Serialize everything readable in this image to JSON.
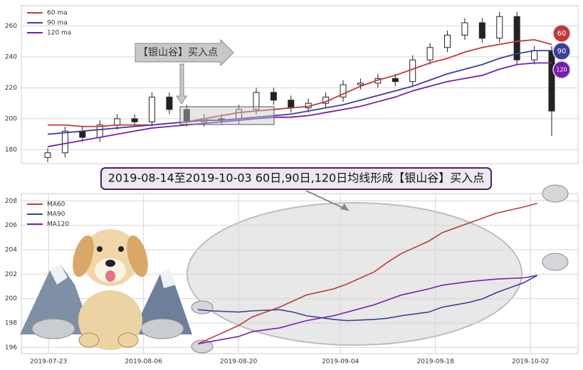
{
  "chart_data": [
    {
      "type": "candlestick",
      "annotation": "【银山谷】买入点",
      "open": [
        175,
        178,
        192,
        188,
        196,
        200,
        198,
        214,
        206,
        198,
        200,
        199,
        206,
        217,
        212,
        207,
        210,
        214,
        222,
        223,
        226,
        224,
        238,
        246,
        254,
        262,
        252,
        266,
        238,
        244
      ],
      "high": [
        181,
        195,
        195,
        199,
        203,
        203,
        217,
        217,
        209,
        203,
        203,
        209,
        220,
        220,
        215,
        213,
        217,
        225,
        226,
        229,
        229,
        241,
        249,
        257,
        265,
        265,
        269,
        269,
        247,
        247
      ],
      "low": [
        172,
        175,
        185,
        185,
        193,
        195,
        195,
        203,
        195,
        195,
        196,
        196,
        203,
        209,
        204,
        204,
        207,
        211,
        219,
        220,
        221,
        221,
        235,
        243,
        251,
        249,
        249,
        235,
        235,
        189
      ],
      "close": [
        178,
        192,
        188,
        196,
        200,
        198,
        214,
        206,
        198,
        200,
        199,
        206,
        217,
        212,
        207,
        210,
        214,
        222,
        223,
        226,
        224,
        238,
        246,
        254,
        262,
        252,
        266,
        238,
        244,
        205
      ],
      "series": [
        {
          "name": "60 ma",
          "badge": "60",
          "color": "#c0393b",
          "values": [
            196,
            196,
            195,
            195,
            196,
            196,
            196,
            197,
            198,
            200,
            202,
            204,
            205,
            206,
            207,
            208,
            211,
            216,
            221,
            225,
            228,
            232,
            236,
            239,
            243,
            246,
            248,
            250,
            251,
            248
          ]
        },
        {
          "name": "90 ma",
          "badge": "90",
          "color": "#3a3f9a",
          "values": [
            190,
            191,
            192,
            193,
            194,
            195,
            196,
            197,
            198,
            199,
            199,
            200,
            201,
            202,
            203,
            205,
            207,
            209,
            212,
            215,
            218,
            221,
            225,
            229,
            232,
            235,
            239,
            242,
            244,
            244
          ]
        },
        {
          "name": "120 ma",
          "badge": "120",
          "color": "#7a1fa8",
          "values": [
            182,
            184,
            186,
            188,
            190,
            192,
            194,
            195,
            196,
            197,
            198,
            199,
            200,
            201,
            201,
            202,
            204,
            206,
            208,
            211,
            214,
            218,
            221,
            224,
            226,
            228,
            232,
            235,
            236,
            236
          ]
        }
      ],
      "ylim": [
        171,
        273
      ],
      "yticks": [
        180,
        200,
        220,
        240,
        260
      ],
      "grid": true
    },
    {
      "type": "line",
      "annotation": "2019-08-14至2019-10-03 60日,90日,120日均线形成【银山谷】买入点",
      "x": [
        "2019-08-14",
        "2019-08-16",
        "2019-08-20",
        "2019-08-22",
        "2019-08-26",
        "2019-08-28",
        "2019-08-30",
        "2019-09-03",
        "2019-09-05",
        "2019-09-09",
        "2019-09-11",
        "2019-09-13",
        "2019-09-17",
        "2019-09-19",
        "2019-09-23",
        "2019-09-25",
        "2019-09-27",
        "2019-10-01",
        "2019-10-03"
      ],
      "series": [
        {
          "name": "MA60",
          "color": "#c0393b",
          "values": [
            196.3,
            196.8,
            197.8,
            198.5,
            199.3,
            199.8,
            200.3,
            200.8,
            201.2,
            202.2,
            203.0,
            203.7,
            204.7,
            205.4,
            206.2,
            206.6,
            207.0,
            207.5,
            207.8
          ]
        },
        {
          "name": "MA90",
          "color": "#3a3f9a",
          "values": [
            199.1,
            199.0,
            198.9,
            199.0,
            199.1,
            198.9,
            198.6,
            198.3,
            198.2,
            198.3,
            198.4,
            198.6,
            198.9,
            199.3,
            199.7,
            200.0,
            200.5,
            201.3,
            201.9
          ]
        },
        {
          "name": "MA120",
          "color": "#7a1fa8",
          "values": [
            196.3,
            196.5,
            196.9,
            197.3,
            197.6,
            197.9,
            198.2,
            198.6,
            198.9,
            199.5,
            199.9,
            200.3,
            200.8,
            201.1,
            201.4,
            201.5,
            201.6,
            201.7,
            201.9
          ]
        }
      ],
      "xlim": [
        "2019-07-19",
        "2019-10-09"
      ],
      "xticks": [
        "2019-07-23",
        "2019-08-06",
        "2019-08-20",
        "2019-09-04",
        "2019-09-18",
        "2019-10-02"
      ],
      "ylim": [
        195.5,
        208.6
      ],
      "yticks": [
        196,
        198,
        200,
        202,
        204,
        206,
        208
      ],
      "grid": true
    }
  ]
}
